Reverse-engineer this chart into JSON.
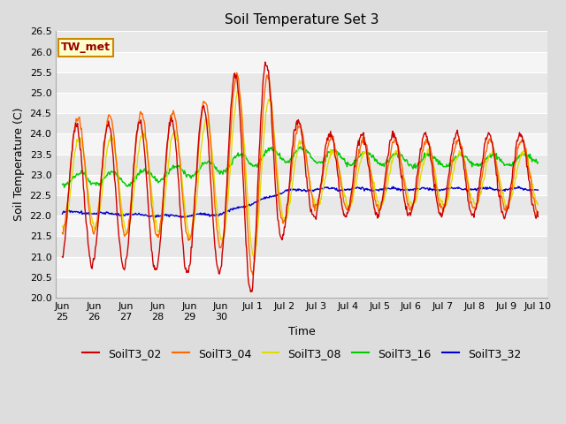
{
  "title": "Soil Temperature Set 3",
  "xlabel": "Time",
  "ylabel": "Soil Temperature (C)",
  "ylim": [
    20.0,
    26.5
  ],
  "yticks": [
    20.0,
    20.5,
    21.0,
    21.5,
    22.0,
    22.5,
    23.0,
    23.5,
    24.0,
    24.5,
    25.0,
    25.5,
    26.0,
    26.5
  ],
  "series_colors": {
    "SoilT3_02": "#cc0000",
    "SoilT3_04": "#ff6600",
    "SoilT3_08": "#dddd00",
    "SoilT3_16": "#00cc00",
    "SoilT3_32": "#0000cc"
  },
  "annotation_text": "TW_met",
  "annotation_color": "#990000",
  "annotation_bg": "#ffffcc",
  "annotation_border": "#cc8800",
  "background_color": "#dddddd",
  "plot_bg_color": "#eeeeee",
  "grid_color": "#ffffff",
  "title_fontsize": 11,
  "label_fontsize": 9,
  "tick_fontsize": 8,
  "legend_fontsize": 9,
  "line_width": 1.0,
  "xtick_labels": [
    "Jun\n25",
    "Jun\n26",
    "Jun\n27",
    "Jun\n28",
    "Jun\n29",
    "Jun\n30",
    "Jul 1",
    "Jul 2",
    "Jul 3",
    "Jul 4",
    "Jul 5",
    "Jul 6",
    "Jul 7",
    "Jul 8",
    "Jul 9",
    "Jul 10"
  ]
}
